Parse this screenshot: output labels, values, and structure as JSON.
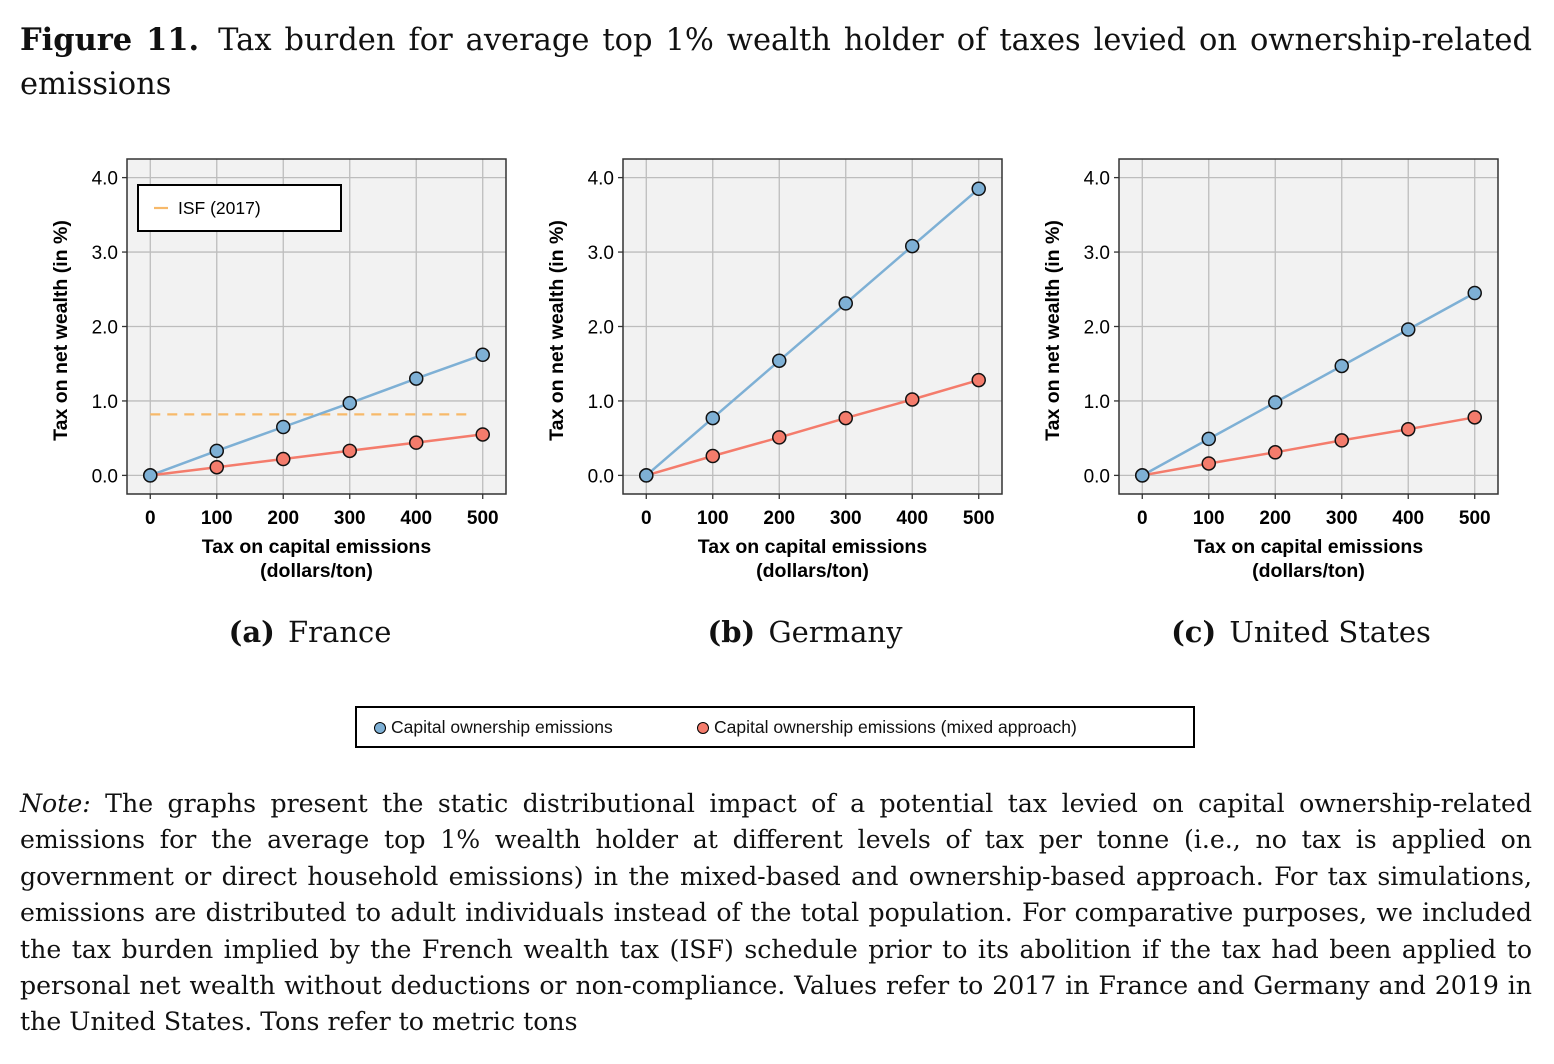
{
  "figure": {
    "label": "Figure 11.",
    "title": "Tax burden for average top 1% wealth holder of taxes levied on ownership-related emissions"
  },
  "legend": {
    "items": [
      {
        "label": "Capital ownership emissions",
        "color": "#7eb0d5"
      },
      {
        "label": "Capital ownership emissions (mixed approach)",
        "color": "#f47c6c"
      }
    ]
  },
  "note": {
    "label": "Note:",
    "text": "The graphs present the static distributional impact of a potential tax levied on capital ownership-related emissions for the average top 1% wealth holder at different levels of tax per tonne (i.e., no tax is applied on government or direct household emissions) in the mixed-based and ownership-based approach. For tax simulations, emissions are distributed to adult individuals instead of the total population. For comparative purposes, we included the tax burden implied by the French wealth tax (ISF) schedule prior to its abolition if the tax had been applied to personal net wealth without deductions or non-compliance. Values refer to 2017 in France and Germany and 2019 in the United States. Tons refer to metric tons"
  },
  "chart_data": [
    {
      "type": "line",
      "panel_letter": "(a)",
      "panel_name": "France",
      "xlabel_line1": "Tax on capital emissions",
      "xlabel_line2": "(dollars/ton)",
      "ylabel": "Tax on net wealth (in %)",
      "x": [
        0,
        100,
        200,
        300,
        400,
        500
      ],
      "xlim": [
        -35,
        535
      ],
      "ylim": [
        -0.25,
        4.25
      ],
      "xticks": [
        "0",
        "100",
        "200",
        "300",
        "400",
        "500"
      ],
      "yticks": [
        "0.0",
        "1.0",
        "2.0",
        "3.0",
        "4.0"
      ],
      "grid": true,
      "series": [
        {
          "name": "Capital ownership emissions",
          "color": "#7eb0d5",
          "values": [
            0,
            0.33,
            0.65,
            0.97,
            1.3,
            1.62
          ]
        },
        {
          "name": "Capital ownership emissions (mixed approach)",
          "color": "#f47c6c",
          "values": [
            0,
            0.11,
            0.22,
            0.33,
            0.44,
            0.55
          ]
        }
      ],
      "reference_line": {
        "name": "ISF (2017)",
        "value": 0.82,
        "x_range": [
          0,
          485
        ],
        "color": "#f7b96a",
        "style": "dashed"
      },
      "inset_legend": {
        "label": "ISF (2017)",
        "placement": "top-left"
      }
    },
    {
      "type": "line",
      "panel_letter": "(b)",
      "panel_name": "Germany",
      "xlabel_line1": "Tax on capital emissions",
      "xlabel_line2": "(dollars/ton)",
      "ylabel": "Tax on net wealth (in %)",
      "x": [
        0,
        100,
        200,
        300,
        400,
        500
      ],
      "xlim": [
        -35,
        535
      ],
      "ylim": [
        -0.25,
        4.25
      ],
      "xticks": [
        "0",
        "100",
        "200",
        "300",
        "400",
        "500"
      ],
      "yticks": [
        "0.0",
        "1.0",
        "2.0",
        "3.0",
        "4.0"
      ],
      "grid": true,
      "series": [
        {
          "name": "Capital ownership emissions",
          "color": "#7eb0d5",
          "values": [
            0,
            0.77,
            1.54,
            2.31,
            3.08,
            3.85
          ]
        },
        {
          "name": "Capital ownership emissions (mixed approach)",
          "color": "#f47c6c",
          "values": [
            0,
            0.26,
            0.51,
            0.77,
            1.02,
            1.28
          ]
        }
      ]
    },
    {
      "type": "line",
      "panel_letter": "(c)",
      "panel_name": "United States",
      "xlabel_line1": "Tax on capital emissions",
      "xlabel_line2": "(dollars/ton)",
      "ylabel": "Tax on net wealth (in %)",
      "x": [
        0,
        100,
        200,
        300,
        400,
        500
      ],
      "xlim": [
        -35,
        535
      ],
      "ylim": [
        -0.25,
        4.25
      ],
      "xticks": [
        "0",
        "100",
        "200",
        "300",
        "400",
        "500"
      ],
      "yticks": [
        "0.0",
        "1.0",
        "2.0",
        "3.0",
        "4.0"
      ],
      "grid": true,
      "series": [
        {
          "name": "Capital ownership emissions",
          "color": "#7eb0d5",
          "values": [
            0,
            0.49,
            0.98,
            1.47,
            1.96,
            2.45
          ]
        },
        {
          "name": "Capital ownership emissions (mixed approach)",
          "color": "#f47c6c",
          "values": [
            0,
            0.16,
            0.31,
            0.47,
            0.62,
            0.78
          ]
        }
      ]
    }
  ]
}
